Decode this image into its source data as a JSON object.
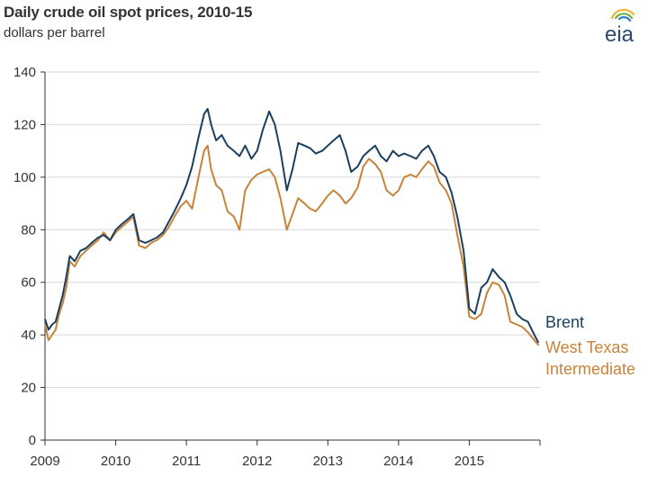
{
  "title": "Daily crude oil spot prices, 2010-15",
  "subtitle": "dollars per barrel",
  "logo": {
    "text": "eia",
    "icon": "eia-logo"
  },
  "colors": {
    "brent": "#1b3f5f",
    "wti": "#c8833a",
    "grid": "#d9d9d9",
    "axis": "#333333"
  },
  "chart_data": {
    "type": "line",
    "title": "Daily crude oil spot prices, 2010-15",
    "ylabel": "dollars per barrel",
    "xlabel": "",
    "ylim": [
      0,
      140
    ],
    "xlim": [
      2009,
      2016
    ],
    "grid": true,
    "y_ticks": [
      0,
      20,
      40,
      60,
      80,
      100,
      120,
      140
    ],
    "x_tick_labels": [
      "2009",
      "2010",
      "2011",
      "2012",
      "2013",
      "2014",
      "2015"
    ],
    "legend_position": "right",
    "series": [
      {
        "name": "Brent",
        "x": [
          2009.0,
          2009.05,
          2009.1,
          2009.15,
          2009.2,
          2009.25,
          2009.3,
          2009.35,
          2009.42,
          2009.5,
          2009.58,
          2009.66,
          2009.75,
          2009.83,
          2009.92,
          2010.0,
          2010.08,
          2010.17,
          2010.25,
          2010.33,
          2010.42,
          2010.5,
          2010.58,
          2010.67,
          2010.75,
          2010.83,
          2010.92,
          2011.0,
          2011.08,
          2011.17,
          2011.25,
          2011.3,
          2011.35,
          2011.42,
          2011.5,
          2011.58,
          2011.67,
          2011.75,
          2011.83,
          2011.92,
          2012.0,
          2012.08,
          2012.17,
          2012.25,
          2012.33,
          2012.42,
          2012.5,
          2012.58,
          2012.67,
          2012.75,
          2012.83,
          2012.92,
          2013.0,
          2013.08,
          2013.17,
          2013.25,
          2013.33,
          2013.42,
          2013.5,
          2013.58,
          2013.67,
          2013.75,
          2013.83,
          2013.92,
          2014.0,
          2014.08,
          2014.17,
          2014.25,
          2014.33,
          2014.42,
          2014.5,
          2014.58,
          2014.67,
          2014.75,
          2014.83,
          2014.92,
          2015.0,
          2015.08,
          2015.17,
          2015.25,
          2015.33,
          2015.42,
          2015.5,
          2015.58,
          2015.67,
          2015.75,
          2015.83,
          2015.92,
          2015.98
        ],
        "values": [
          46,
          42,
          44,
          45,
          50,
          55,
          62,
          70,
          68,
          72,
          73,
          75,
          77,
          78,
          76,
          80,
          82,
          84,
          86,
          76,
          75,
          76,
          77,
          79,
          83,
          87,
          92,
          97,
          104,
          115,
          124,
          126,
          120,
          114,
          116,
          112,
          110,
          108,
          112,
          107,
          110,
          118,
          125,
          120,
          110,
          95,
          103,
          113,
          112,
          111,
          109,
          110,
          112,
          114,
          116,
          110,
          102,
          104,
          108,
          110,
          112,
          108,
          106,
          110,
          108,
          109,
          108,
          107,
          110,
          112,
          108,
          102,
          100,
          94,
          85,
          72,
          50,
          48,
          58,
          60,
          65,
          62,
          60,
          55,
          48,
          46,
          45,
          40,
          37
        ]
      },
      {
        "name": "West Texas Intermediate",
        "x": [
          2009.0,
          2009.05,
          2009.1,
          2009.15,
          2009.2,
          2009.25,
          2009.3,
          2009.35,
          2009.42,
          2009.5,
          2009.58,
          2009.66,
          2009.75,
          2009.83,
          2009.92,
          2010.0,
          2010.08,
          2010.17,
          2010.25,
          2010.33,
          2010.42,
          2010.5,
          2010.58,
          2010.67,
          2010.75,
          2010.83,
          2010.92,
          2011.0,
          2011.08,
          2011.17,
          2011.25,
          2011.3,
          2011.35,
          2011.42,
          2011.5,
          2011.58,
          2011.67,
          2011.75,
          2011.83,
          2011.92,
          2012.0,
          2012.08,
          2012.17,
          2012.25,
          2012.33,
          2012.42,
          2012.5,
          2012.58,
          2012.67,
          2012.75,
          2012.83,
          2012.92,
          2013.0,
          2013.08,
          2013.17,
          2013.25,
          2013.33,
          2013.42,
          2013.5,
          2013.58,
          2013.67,
          2013.75,
          2013.83,
          2013.92,
          2014.0,
          2014.08,
          2014.17,
          2014.25,
          2014.33,
          2014.42,
          2014.5,
          2014.58,
          2014.67,
          2014.75,
          2014.83,
          2014.92,
          2015.0,
          2015.08,
          2015.17,
          2015.25,
          2015.33,
          2015.42,
          2015.5,
          2015.58,
          2015.67,
          2015.75,
          2015.83,
          2015.92,
          2015.98
        ],
        "values": [
          44,
          38,
          40,
          42,
          48,
          52,
          58,
          68,
          66,
          70,
          72,
          74,
          76,
          79,
          76,
          79,
          81,
          83,
          85,
          74,
          73,
          75,
          76,
          78,
          81,
          85,
          89,
          91,
          88,
          100,
          110,
          112,
          103,
          97,
          95,
          87,
          85,
          80,
          95,
          99,
          101,
          102,
          103,
          100,
          92,
          80,
          86,
          92,
          90,
          88,
          87,
          90,
          93,
          95,
          93,
          90,
          92,
          96,
          104,
          107,
          105,
          102,
          95,
          93,
          95,
          100,
          101,
          100,
          103,
          106,
          104,
          98,
          95,
          90,
          78,
          66,
          47,
          46,
          48,
          56,
          60,
          59,
          55,
          45,
          44,
          43,
          41,
          38,
          36
        ]
      }
    ]
  }
}
